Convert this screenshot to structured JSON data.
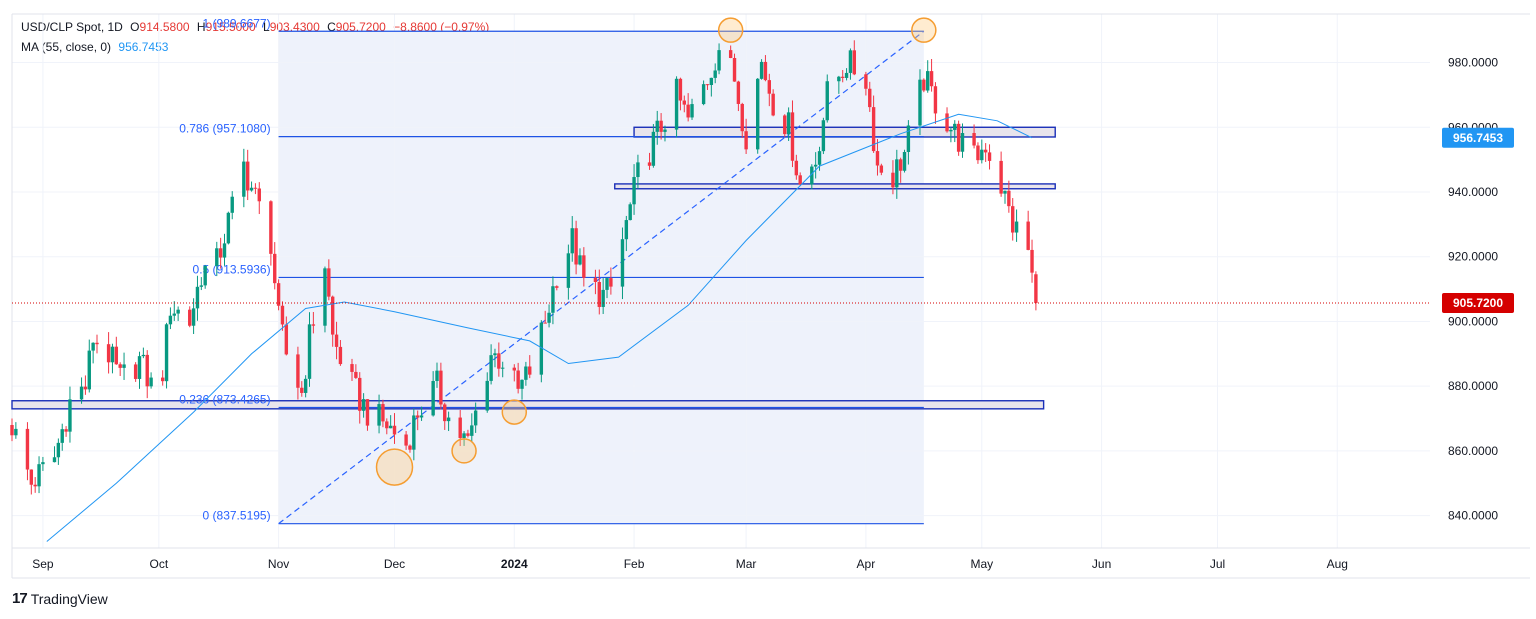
{
  "header": {
    "symbol": "USD/CLP Spot, 1D",
    "open_label": "O",
    "open": "914.5800",
    "high_label": "H",
    "high": "915.5000",
    "low_label": "L",
    "low": "903.4300",
    "close_label": "C",
    "close": "905.7200",
    "change": "−8.8600 (−0.97%)",
    "ma_label": "MA (55, close, 0)",
    "ma_value": "956.7453"
  },
  "brand": {
    "logo": "17",
    "name": "TradingView"
  },
  "colors": {
    "up": "#089981",
    "down": "#f23645",
    "ma": "#2196f3",
    "fib": "#1e53e5",
    "marker": "#f59d31",
    "last_price": "#d50000"
  },
  "chart_data": {
    "type": "candlestick",
    "title": "USD/CLP Spot, 1D",
    "ylim": [
      830,
      995
    ],
    "y_ticks": [
      840,
      860,
      880,
      900,
      920,
      940,
      960,
      980
    ],
    "y_tick_labels": [
      "840.0000",
      "860.0000",
      "880.0000",
      "900.0000",
      "920.0000",
      "940.0000",
      "960.0000",
      "980.0000"
    ],
    "x_ticks": [
      {
        "label": "Sep",
        "date": "2023-09-01"
      },
      {
        "label": "Oct",
        "date": "2023-10-01"
      },
      {
        "label": "Nov",
        "date": "2023-11-01"
      },
      {
        "label": "Dec",
        "date": "2023-12-01"
      },
      {
        "label": "2024",
        "date": "2024-01-01",
        "bold": true
      },
      {
        "label": "Feb",
        "date": "2024-02-01"
      },
      {
        "label": "Mar",
        "date": "2024-03-01"
      },
      {
        "label": "Apr",
        "date": "2024-04-01"
      },
      {
        "label": "May",
        "date": "2024-05-01"
      },
      {
        "label": "Jun",
        "date": "2024-06-01"
      },
      {
        "label": "Jul",
        "date": "2024-07-01"
      },
      {
        "label": "Aug",
        "date": "2024-08-01"
      }
    ],
    "x_range": [
      "2023-08-24",
      "2024-08-25"
    ],
    "last_price": 905.72,
    "last_price_label": "905.7200",
    "ma_last_label": "956.7453",
    "closes": [
      {
        "date": "2023-08-24",
        "close": 868
      },
      {
        "date": "2023-08-29",
        "close": 850
      },
      {
        "date": "2023-09-04",
        "close": 858
      },
      {
        "date": "2023-09-08",
        "close": 875
      },
      {
        "date": "2023-09-12",
        "close": 880
      },
      {
        "date": "2023-09-14",
        "close": 895
      },
      {
        "date": "2023-09-18",
        "close": 890
      },
      {
        "date": "2023-09-21",
        "close": 882
      },
      {
        "date": "2023-09-26",
        "close": 888
      },
      {
        "date": "2023-09-29",
        "close": 880
      },
      {
        "date": "2023-10-02",
        "close": 885
      },
      {
        "date": "2023-10-04",
        "close": 905
      },
      {
        "date": "2023-10-09",
        "close": 900
      },
      {
        "date": "2023-10-12",
        "close": 915
      },
      {
        "date": "2023-10-16",
        "close": 918
      },
      {
        "date": "2023-10-20",
        "close": 935
      },
      {
        "date": "2023-10-23",
        "close": 948
      },
      {
        "date": "2023-10-26",
        "close": 938
      },
      {
        "date": "2023-10-30",
        "close": 925
      },
      {
        "date": "2023-11-01",
        "close": 900
      },
      {
        "date": "2023-11-03",
        "close": 890
      },
      {
        "date": "2023-11-07",
        "close": 878
      },
      {
        "date": "2023-11-09",
        "close": 895
      },
      {
        "date": "2023-11-13",
        "close": 918
      },
      {
        "date": "2023-11-15",
        "close": 895
      },
      {
        "date": "2023-11-20",
        "close": 880
      },
      {
        "date": "2023-11-24",
        "close": 872
      },
      {
        "date": "2023-11-29",
        "close": 868
      },
      {
        "date": "2023-12-04",
        "close": 862
      },
      {
        "date": "2023-12-07",
        "close": 872
      },
      {
        "date": "2023-12-12",
        "close": 880
      },
      {
        "date": "2023-12-15",
        "close": 870
      },
      {
        "date": "2023-12-20",
        "close": 862
      },
      {
        "date": "2023-12-26",
        "close": 890
      },
      {
        "date": "2023-12-29",
        "close": 888
      },
      {
        "date": "2024-01-02",
        "close": 878
      },
      {
        "date": "2024-01-05",
        "close": 885
      },
      {
        "date": "2024-01-09",
        "close": 900
      },
      {
        "date": "2024-01-12",
        "close": 915
      },
      {
        "date": "2024-01-16",
        "close": 925
      },
      {
        "date": "2024-01-19",
        "close": 912
      },
      {
        "date": "2024-01-24",
        "close": 908
      },
      {
        "date": "2024-01-26",
        "close": 910
      },
      {
        "date": "2024-01-30",
        "close": 930
      },
      {
        "date": "2024-02-02",
        "close": 945
      },
      {
        "date": "2024-02-07",
        "close": 958
      },
      {
        "date": "2024-02-12",
        "close": 970
      },
      {
        "date": "2024-02-15",
        "close": 962
      },
      {
        "date": "2024-02-20",
        "close": 975
      },
      {
        "date": "2024-02-23",
        "close": 985
      },
      {
        "date": "2024-02-27",
        "close": 975
      },
      {
        "date": "2024-03-01",
        "close": 958
      },
      {
        "date": "2024-03-05",
        "close": 980
      },
      {
        "date": "2024-03-08",
        "close": 968
      },
      {
        "date": "2024-03-12",
        "close": 960
      },
      {
        "date": "2024-03-15",
        "close": 942
      },
      {
        "date": "2024-03-19",
        "close": 950
      },
      {
        "date": "2024-03-22",
        "close": 970
      },
      {
        "date": "2024-03-27",
        "close": 980
      },
      {
        "date": "2024-04-01",
        "close": 975
      },
      {
        "date": "2024-04-04",
        "close": 948
      },
      {
        "date": "2024-04-08",
        "close": 945
      },
      {
        "date": "2024-04-11",
        "close": 952
      },
      {
        "date": "2024-04-16",
        "close": 975
      },
      {
        "date": "2024-04-19",
        "close": 968
      },
      {
        "date": "2024-04-24",
        "close": 958
      },
      {
        "date": "2024-04-29",
        "close": 950
      },
      {
        "date": "2024-05-02",
        "close": 955
      },
      {
        "date": "2024-05-06",
        "close": 942
      },
      {
        "date": "2024-05-09",
        "close": 930
      },
      {
        "date": "2024-05-13",
        "close": 922
      },
      {
        "date": "2024-05-15",
        "close": 905.72
      }
    ],
    "moving_average": {
      "name": "MA (55, close, 0)",
      "points": [
        {
          "date": "2023-09-02",
          "v": 832
        },
        {
          "date": "2023-09-20",
          "v": 850
        },
        {
          "date": "2023-10-10",
          "v": 872
        },
        {
          "date": "2023-10-25",
          "v": 890
        },
        {
          "date": "2023-11-08",
          "v": 904
        },
        {
          "date": "2023-11-18",
          "v": 906
        },
        {
          "date": "2023-12-01",
          "v": 903
        },
        {
          "date": "2023-12-20",
          "v": 898
        },
        {
          "date": "2024-01-05",
          "v": 894
        },
        {
          "date": "2024-01-15",
          "v": 887
        },
        {
          "date": "2024-01-28",
          "v": 889
        },
        {
          "date": "2024-02-15",
          "v": 905
        },
        {
          "date": "2024-03-01",
          "v": 925
        },
        {
          "date": "2024-03-20",
          "v": 948
        },
        {
          "date": "2024-04-10",
          "v": 958
        },
        {
          "date": "2024-04-25",
          "v": 964
        },
        {
          "date": "2024-05-05",
          "v": 962
        },
        {
          "date": "2024-05-14",
          "v": 956.7453
        }
      ]
    },
    "fibonacci": {
      "from": {
        "date": "2023-11-01",
        "price": 837.5195
      },
      "to": {
        "date": "2024-04-16",
        "price": 989.6677
      },
      "levels": [
        {
          "ratio": "0",
          "label": "0 (837.5195)",
          "price": 837.5195
        },
        {
          "ratio": "0.236",
          "label": "0.236 (873.4265)",
          "price": 873.4265
        },
        {
          "ratio": "0.5",
          "label": "0.5 (913.5936)",
          "price": 913.5936
        },
        {
          "ratio": "0.786",
          "label": "0.786 (957.1080)",
          "price": 957.108
        },
        {
          "ratio": "1",
          "label": "1 (989.6677)",
          "price": 989.6677
        }
      ]
    },
    "zones": [
      {
        "from": "2023-08-24",
        "to": "2024-05-17",
        "low": 873,
        "high": 875.5
      },
      {
        "from": "2024-01-27",
        "to": "2024-05-20",
        "low": 941,
        "high": 942.5
      },
      {
        "from": "2024-02-01",
        "to": "2024-05-20",
        "low": 957,
        "high": 960
      }
    ],
    "markers": [
      {
        "date": "2023-12-01",
        "price": 855
      },
      {
        "date": "2023-12-19",
        "price": 860
      },
      {
        "date": "2024-01-01",
        "price": 872
      },
      {
        "date": "2024-02-26",
        "price": 990
      },
      {
        "date": "2024-04-16",
        "price": 990
      }
    ]
  }
}
